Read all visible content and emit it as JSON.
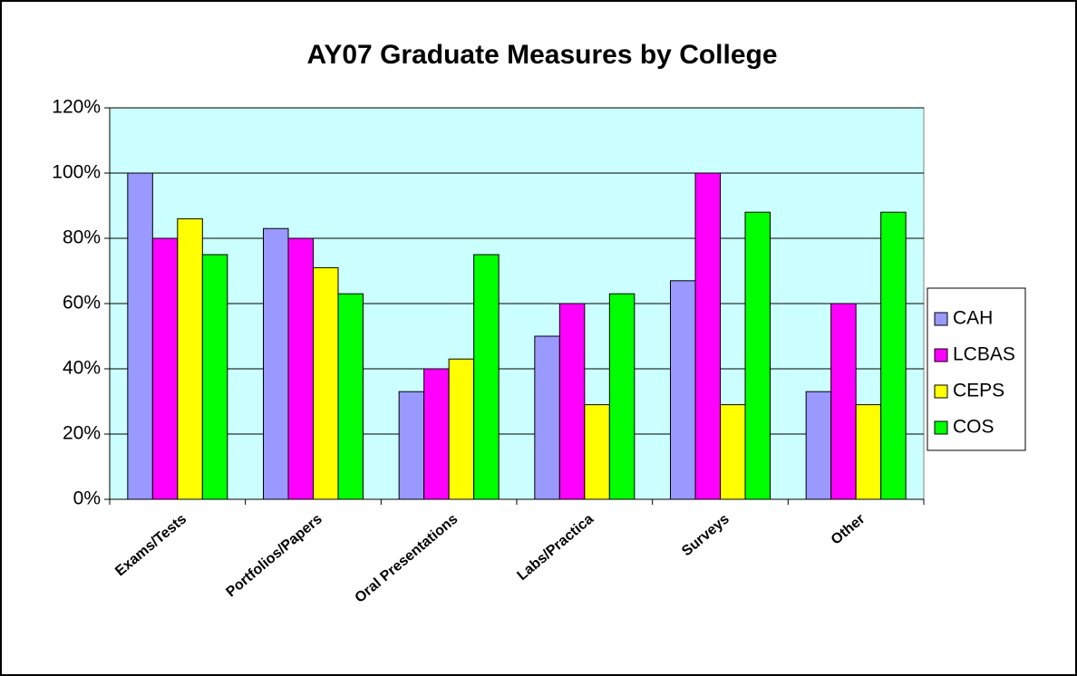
{
  "chart_data": {
    "type": "bar",
    "title": "AY07 Graduate Measures by College",
    "categories": [
      "Exams/Tests",
      "Portfolios/Papers",
      "Oral Presentations",
      "Labs/Practica",
      "Surveys",
      "Other"
    ],
    "series": [
      {
        "name": "CAH",
        "color": "#9999ff",
        "values": [
          100,
          83,
          33,
          50,
          67,
          33
        ]
      },
      {
        "name": "LCBAS",
        "color": "#ff00ff",
        "values": [
          80,
          80,
          40,
          60,
          100,
          60
        ]
      },
      {
        "name": "CEPS",
        "color": "#ffff00",
        "values": [
          86,
          71,
          43,
          29,
          29,
          29
        ]
      },
      {
        "name": "COS",
        "color": "#00ff00",
        "values": [
          75,
          63,
          75,
          63,
          88,
          88
        ]
      }
    ],
    "ylim": [
      0,
      120
    ],
    "yticks": [
      {
        "value": 0,
        "label": "0%"
      },
      {
        "value": 20,
        "label": "20%"
      },
      {
        "value": 40,
        "label": "40%"
      },
      {
        "value": 60,
        "label": "60%"
      },
      {
        "value": 80,
        "label": "80%"
      },
      {
        "value": 100,
        "label": "100%"
      },
      {
        "value": 120,
        "label": "120%"
      }
    ],
    "grid": true,
    "legend": "right",
    "plot_background": "#ccffff"
  }
}
